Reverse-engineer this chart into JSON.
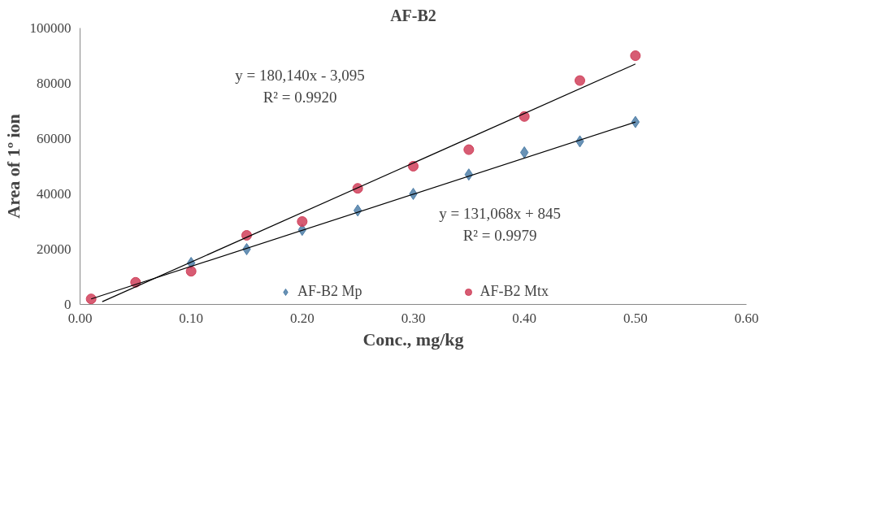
{
  "chart_data": {
    "type": "scatter",
    "title": "AF-B2",
    "xlabel": "Conc., mg/kg",
    "ylabel": "Area of 1º ion",
    "xlim": [
      0,
      0.6
    ],
    "xticks": [
      {
        "value": 0,
        "label": "0.00"
      },
      {
        "value": 0.1,
        "label": "0.10"
      },
      {
        "value": 0.2,
        "label": "0.20"
      },
      {
        "value": 0.3,
        "label": "0.30"
      },
      {
        "value": 0.4,
        "label": "0.40"
      },
      {
        "value": 0.5,
        "label": "0.50"
      },
      {
        "value": 0.6,
        "label": "0.60"
      }
    ],
    "ylim": [
      0,
      100000
    ],
    "yticks": [
      0,
      20000,
      40000,
      60000,
      80000,
      100000
    ],
    "x": [
      0.01,
      0.05,
      0.1,
      0.15,
      0.2,
      0.25,
      0.3,
      0.35,
      0.4,
      0.45,
      0.5
    ],
    "series": [
      {
        "name": "AF-B2 Mp",
        "color": "#4f7fa8",
        "marker": "diamond",
        "values": [
          null,
          null,
          15000,
          20000,
          27000,
          34000,
          40000,
          47000,
          55000,
          59000,
          66000
        ]
      },
      {
        "name": "AF-B2 Mtx",
        "color": "#d0405a",
        "marker": "circle",
        "values": [
          2000,
          8000,
          12000,
          25000,
          30000,
          42000,
          50000,
          56000,
          68000,
          81000,
          90000
        ]
      },
      {
        "type": "line",
        "color": "#000000",
        "x": [
          0.01,
          0.5
        ],
        "values": [
          2000,
          66000
        ]
      },
      {
        "type": "line",
        "color": "#000000",
        "x": [
          0.02,
          0.5
        ],
        "values": [
          1000,
          87000
        ]
      }
    ],
    "annotations": [
      "y = 180,140x - 3,095",
      "R² = 0.9920",
      "y = 131,068x + 845",
      "R² = 0.9979"
    ],
    "grid": false,
    "legend": "bottom"
  }
}
